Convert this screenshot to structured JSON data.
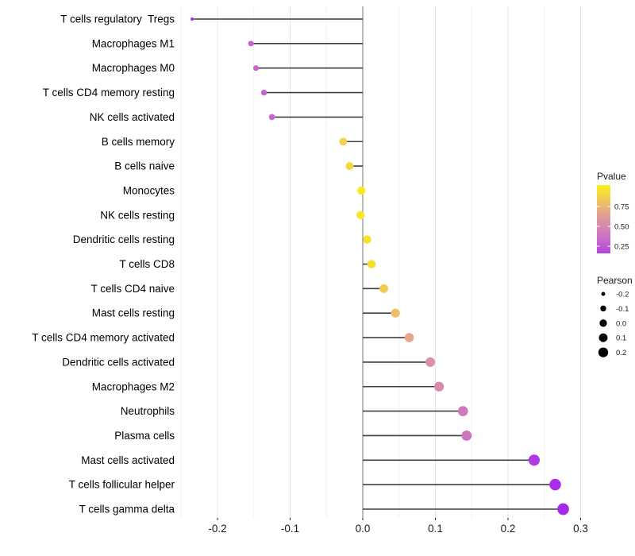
{
  "chart_data": {
    "type": "lollipop",
    "title": "",
    "xlabel": "",
    "ylabel": "",
    "x_axis": {
      "ticks": [
        -0.2,
        -0.1,
        0.0,
        0.1,
        0.2,
        0.3
      ],
      "tick_labels": [
        "-0.2",
        "-0.1",
        "0.0",
        "0.1",
        "0.2",
        "0.3"
      ],
      "range": [
        -0.26,
        0.31
      ],
      "minor_step": 0.05,
      "grid": "vertical-only"
    },
    "points": [
      {
        "label": "T cells regulatory  Tregs",
        "pearson": -0.235,
        "pvalue": 0.1
      },
      {
        "label": "Macrophages M1",
        "pearson": -0.154,
        "pvalue": 0.28
      },
      {
        "label": "Macrophages M0",
        "pearson": -0.147,
        "pvalue": 0.3
      },
      {
        "label": "T cells CD4 memory resting",
        "pearson": -0.136,
        "pvalue": 0.3
      },
      {
        "label": "NK cells activated",
        "pearson": -0.125,
        "pvalue": 0.32
      },
      {
        "label": "B cells memory",
        "pearson": -0.027,
        "pvalue": 0.88
      },
      {
        "label": "B cells naive",
        "pearson": -0.018,
        "pvalue": 0.9
      },
      {
        "label": "Monocytes",
        "pearson": -0.002,
        "pvalue": 0.97
      },
      {
        "label": "NK cells resting",
        "pearson": -0.003,
        "pvalue": 0.96
      },
      {
        "label": "Dendritic cells resting",
        "pearson": 0.006,
        "pvalue": 0.95
      },
      {
        "label": "T cells CD8",
        "pearson": 0.012,
        "pvalue": 0.93
      },
      {
        "label": "T cells CD4 naive",
        "pearson": 0.029,
        "pvalue": 0.85
      },
      {
        "label": "Mast cells resting",
        "pearson": 0.045,
        "pvalue": 0.8
      },
      {
        "label": "T cells CD4 memory activated",
        "pearson": 0.064,
        "pvalue": 0.68
      },
      {
        "label": "Dendritic cells activated",
        "pearson": 0.093,
        "pvalue": 0.55
      },
      {
        "label": "Macrophages M2",
        "pearson": 0.105,
        "pvalue": 0.52
      },
      {
        "label": "Neutrophils",
        "pearson": 0.138,
        "pvalue": 0.42
      },
      {
        "label": "Plasma cells",
        "pearson": 0.143,
        "pvalue": 0.4
      },
      {
        "label": "Mast cells activated",
        "pearson": 0.236,
        "pvalue": 0.12
      },
      {
        "label": "T cells follicular helper",
        "pearson": 0.265,
        "pvalue": 0.08
      },
      {
        "label": "T cells gamma delta",
        "pearson": 0.276,
        "pvalue": 0.06
      }
    ],
    "legend": {
      "pvalue": {
        "title": "Pvalue",
        "tick_labels": [
          "0.75",
          "0.50",
          "0.25"
        ],
        "ticks": [
          0.75,
          0.5,
          0.25
        ],
        "gradient_stops": {
          "0.00": "#9E19EC",
          "0.25": "#C45BD9",
          "0.50": "#D787AE",
          "0.75": "#EBB27C",
          "1.00": "#FAF118"
        }
      },
      "pearson": {
        "title": "Pearson",
        "sizes": [
          -0.2,
          -0.1,
          0.0,
          0.1,
          0.2
        ],
        "size_labels": [
          "-0.2",
          "-0.1",
          "0.0",
          "0.1",
          "0.2"
        ],
        "dot_color": "#000000"
      },
      "position": "right"
    },
    "colors": {
      "background": "#ffffff",
      "segment": "#3f3f3f",
      "zero_line": "#757575",
      "grid_major": "#e4e4e4",
      "grid_minor": "#f1f1f1",
      "axis_text": "#1a1a1a",
      "label_text": "#000000",
      "legend_text": "#1a1a1a"
    }
  }
}
